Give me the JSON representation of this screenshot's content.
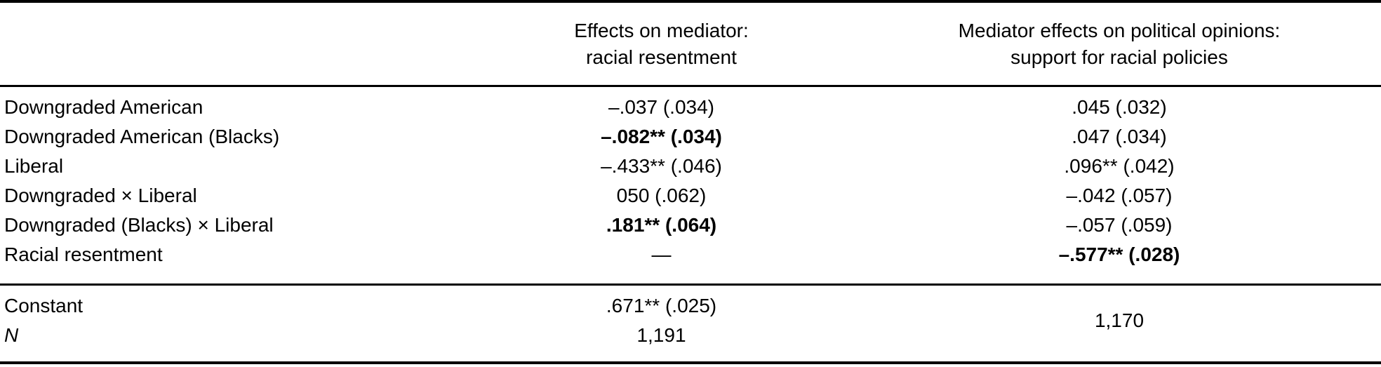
{
  "table": {
    "headers": {
      "mediator": "Effects on mediator:\nracial resentment",
      "opinions": "Mediator effects on political opinions:\nsupport for racial policies"
    },
    "rows": [
      {
        "label": "Downgraded American",
        "mediator": "–.037 (.034)",
        "opinions": ".045 (.032)"
      },
      {
        "label": "Downgraded American (Blacks)",
        "mediator": "–.082** (.034)",
        "opinions": ".047 (.034)"
      },
      {
        "label": "Liberal",
        "mediator": "–.433** (.046)",
        "opinions": ".096** (.042)"
      },
      {
        "label": "Downgraded × Liberal",
        "mediator": "050 (.062)",
        "opinions": "–.042 (.057)"
      },
      {
        "label": "Downgraded (Blacks) × Liberal",
        "mediator": ".181** (.064)",
        "opinions": "–.057 (.059)"
      },
      {
        "label": "Racial resentment",
        "mediator": "—",
        "opinions": "–.577** (.028)"
      }
    ],
    "footer": {
      "constant_label": "Constant",
      "constant_mediator": ".671** (.025)",
      "n_label": "N",
      "n_mediator": "1,191",
      "n_opinions": "1,170"
    },
    "colors": {
      "text": "#000000",
      "rule": "#000000",
      "background": "#ffffff"
    }
  }
}
